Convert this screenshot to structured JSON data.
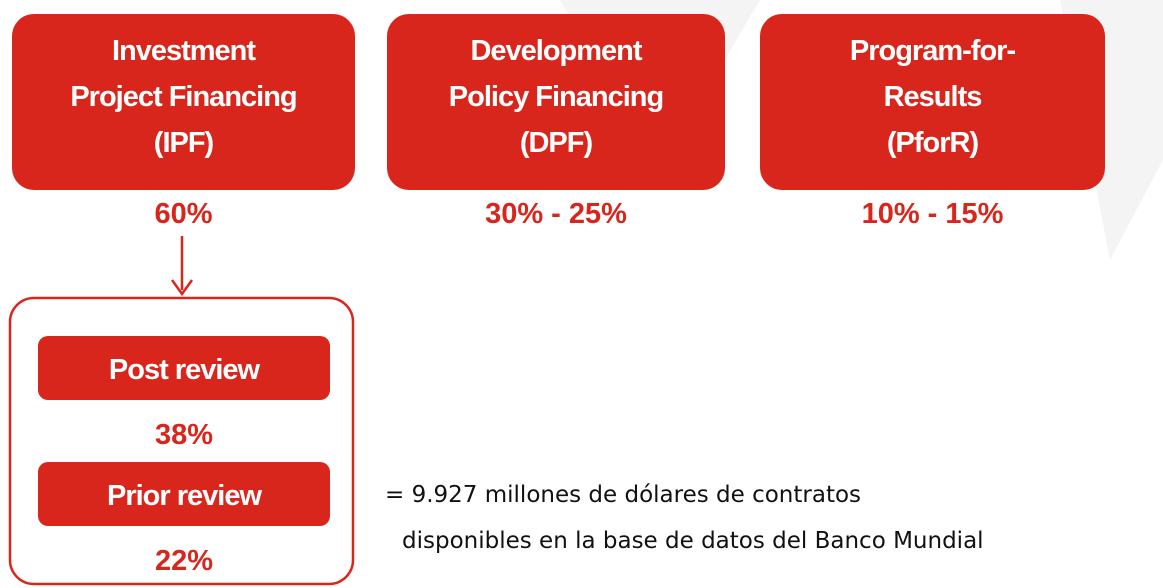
{
  "nodes": [
    {
      "lines": [
        "Investment",
        "Project Financing",
        "(IPF)"
      ],
      "share": "60%"
    },
    {
      "lines": [
        "Development",
        "Policy Financing",
        "(DPF)"
      ],
      "share": "30% - 25%"
    },
    {
      "lines": [
        "Program-for-",
        "Results",
        "(PforR)"
      ],
      "share": "10% - 15%"
    }
  ],
  "breakdown": [
    {
      "label": "Post review",
      "share": "38%"
    },
    {
      "label": "Prior review",
      "share": "22%"
    }
  ],
  "note": [
    "= 9.927 millones de dólares de contratos",
    "disponibles en la base de datos del Banco Mundial"
  ]
}
